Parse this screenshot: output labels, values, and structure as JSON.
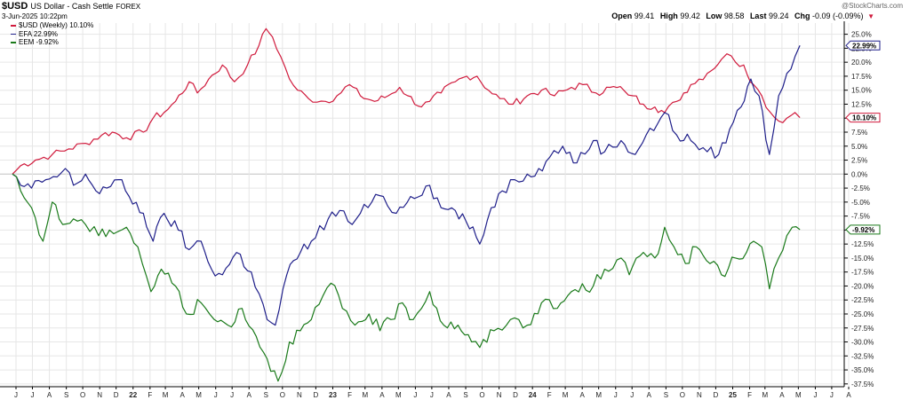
{
  "header": {
    "symbol": "$USD",
    "description": "US Dollar - Cash Settle",
    "exchange": "FOREX",
    "datetime": "3-Jun-2025 10:22pm",
    "watermark": "@StockCharts.com",
    "open_label": "Open",
    "open": "99.41",
    "high_label": "High",
    "high": "99.42",
    "low_label": "Low",
    "low": "98.58",
    "last_label": "Last",
    "last": "99.24",
    "chg_label": "Chg",
    "chg": "-0.09 (-0.09%)"
  },
  "colors": {
    "usd": "#d01a3c",
    "efa": "#1f1f8a",
    "eem": "#1a7a1a",
    "grid": "#e6e6e6",
    "axis": "#000000"
  },
  "chart_data": {
    "type": "line",
    "ylim": [
      -38,
      27
    ],
    "yticks": [
      25,
      22.5,
      20,
      17.5,
      15,
      12.5,
      10,
      7.5,
      5,
      2.5,
      0,
      -2.5,
      -5,
      -7.5,
      -10,
      -12.5,
      -15,
      -17.5,
      -20,
      -22.5,
      -25,
      -27.5,
      -30,
      -32.5,
      -35,
      -37.5
    ],
    "ytick_labels": [
      "25.0%",
      "22.5%",
      "20.0%",
      "17.5%",
      "15.0%",
      "12.5%",
      "10.0%",
      "7.5%",
      "5.0%",
      "2.5%",
      "0.0%",
      "-2.5%",
      "-5.0%",
      "-7.5%",
      "-10.0%",
      "-12.5%",
      "-15.0%",
      "-17.5%",
      "-20.0%",
      "-22.5%",
      "-25.0%",
      "-27.5%",
      "-30.0%",
      "-32.5%",
      "-35.0%",
      "-37.5%"
    ],
    "xlim": [
      "2021-06-20",
      "2025-08-20"
    ],
    "xticks": [
      {
        "date": "2021-06-01",
        "label": "J"
      },
      {
        "date": "2021-07-01",
        "label": "J"
      },
      {
        "date": "2021-08-01",
        "label": "A"
      },
      {
        "date": "2021-09-01",
        "label": "S"
      },
      {
        "date": "2021-10-01",
        "label": "O"
      },
      {
        "date": "2021-11-01",
        "label": "N"
      },
      {
        "date": "2021-12-01",
        "label": "D"
      },
      {
        "date": "2022-01-01",
        "label": "22",
        "year": true
      },
      {
        "date": "2022-02-01",
        "label": "F"
      },
      {
        "date": "2022-03-01",
        "label": "M"
      },
      {
        "date": "2022-04-01",
        "label": "A"
      },
      {
        "date": "2022-05-01",
        "label": "M"
      },
      {
        "date": "2022-06-01",
        "label": "J"
      },
      {
        "date": "2022-07-01",
        "label": "J"
      },
      {
        "date": "2022-08-01",
        "label": "A"
      },
      {
        "date": "2022-09-01",
        "label": "S"
      },
      {
        "date": "2022-10-01",
        "label": "O"
      },
      {
        "date": "2022-11-01",
        "label": "N"
      },
      {
        "date": "2022-12-01",
        "label": "D"
      },
      {
        "date": "2023-01-01",
        "label": "23",
        "year": true
      },
      {
        "date": "2023-02-01",
        "label": "F"
      },
      {
        "date": "2023-03-01",
        "label": "M"
      },
      {
        "date": "2023-04-01",
        "label": "A"
      },
      {
        "date": "2023-05-01",
        "label": "M"
      },
      {
        "date": "2023-06-01",
        "label": "J"
      },
      {
        "date": "2023-07-01",
        "label": "J"
      },
      {
        "date": "2023-08-01",
        "label": "A"
      },
      {
        "date": "2023-09-01",
        "label": "S"
      },
      {
        "date": "2023-10-01",
        "label": "O"
      },
      {
        "date": "2023-11-01",
        "label": "N"
      },
      {
        "date": "2023-12-01",
        "label": "D"
      },
      {
        "date": "2024-01-01",
        "label": "24",
        "year": true
      },
      {
        "date": "2024-02-01",
        "label": "F"
      },
      {
        "date": "2024-03-01",
        "label": "M"
      },
      {
        "date": "2024-04-01",
        "label": "A"
      },
      {
        "date": "2024-05-01",
        "label": "M"
      },
      {
        "date": "2024-06-01",
        "label": "J"
      },
      {
        "date": "2024-07-01",
        "label": "J"
      },
      {
        "date": "2024-08-01",
        "label": "A"
      },
      {
        "date": "2024-09-01",
        "label": "S"
      },
      {
        "date": "2024-10-01",
        "label": "O"
      },
      {
        "date": "2024-11-01",
        "label": "N"
      },
      {
        "date": "2024-12-01",
        "label": "D"
      },
      {
        "date": "2025-01-01",
        "label": "25",
        "year": true
      },
      {
        "date": "2025-02-01",
        "label": "F"
      },
      {
        "date": "2025-03-01",
        "label": "M"
      },
      {
        "date": "2025-04-01",
        "label": "A"
      },
      {
        "date": "2025-05-01",
        "label": "M"
      },
      {
        "date": "2025-06-01",
        "label": "J"
      },
      {
        "date": "2025-07-01",
        "label": "J"
      },
      {
        "date": "2025-08-01",
        "label": "A"
      }
    ],
    "series": [
      {
        "name": "$USD (Weekly) 10.10%",
        "key": "usd",
        "end_label": "10.10%",
        "points": [
          [
            "2021-06-20",
            0
          ],
          [
            "2021-07-05",
            1.5
          ],
          [
            "2021-08-01",
            2.5
          ],
          [
            "2021-09-01",
            3.5
          ],
          [
            "2021-10-01",
            4.5
          ],
          [
            "2021-11-01",
            5.5
          ],
          [
            "2021-12-01",
            7
          ],
          [
            "2021-12-20",
            7.5
          ],
          [
            "2022-01-15",
            6.5
          ],
          [
            "2022-02-15",
            7.5
          ],
          [
            "2022-03-05",
            10
          ],
          [
            "2022-03-25",
            11
          ],
          [
            "2022-04-15",
            13
          ],
          [
            "2022-05-10",
            16.5
          ],
          [
            "2022-05-25",
            14.5
          ],
          [
            "2022-06-15",
            17
          ],
          [
            "2022-07-10",
            19.5
          ],
          [
            "2022-08-01",
            16.5
          ],
          [
            "2022-08-25",
            19.5
          ],
          [
            "2022-09-15",
            23
          ],
          [
            "2022-09-28",
            26
          ],
          [
            "2022-10-10",
            24.5
          ],
          [
            "2022-10-25",
            21
          ],
          [
            "2022-11-10",
            17
          ],
          [
            "2022-11-25",
            15
          ],
          [
            "2022-12-15",
            13.5
          ],
          [
            "2023-01-15",
            13
          ],
          [
            "2023-02-05",
            14
          ],
          [
            "2023-02-28",
            16
          ],
          [
            "2023-03-20",
            14
          ],
          [
            "2023-04-15",
            13
          ],
          [
            "2023-05-10",
            14
          ],
          [
            "2023-05-31",
            15.5
          ],
          [
            "2023-06-15",
            14
          ],
          [
            "2023-07-10",
            12
          ],
          [
            "2023-07-25",
            13
          ],
          [
            "2023-08-15",
            14.5
          ],
          [
            "2023-09-10",
            16.5
          ],
          [
            "2023-10-01",
            17.5
          ],
          [
            "2023-10-20",
            17.5
          ],
          [
            "2023-11-10",
            15
          ],
          [
            "2023-12-01",
            13.5
          ],
          [
            "2023-12-25",
            12.5
          ],
          [
            "2024-01-20",
            14
          ],
          [
            "2024-02-15",
            15
          ],
          [
            "2024-03-10",
            14
          ],
          [
            "2024-04-10",
            15.5
          ],
          [
            "2024-05-01",
            16
          ],
          [
            "2024-05-25",
            14.5
          ],
          [
            "2024-06-20",
            15.5
          ],
          [
            "2024-07-15",
            15
          ],
          [
            "2024-08-01",
            14
          ],
          [
            "2024-08-20",
            12.5
          ],
          [
            "2024-09-10",
            12
          ],
          [
            "2024-09-28",
            11
          ],
          [
            "2024-10-20",
            13
          ],
          [
            "2024-11-15",
            16
          ],
          [
            "2024-12-15",
            18
          ],
          [
            "2025-01-10",
            20.5
          ],
          [
            "2025-01-20",
            21.5
          ],
          [
            "2025-02-05",
            20
          ],
          [
            "2025-02-20",
            19.5
          ],
          [
            "2025-03-10",
            16
          ],
          [
            "2025-03-25",
            14
          ],
          [
            "2025-04-10",
            11
          ],
          [
            "2025-04-25",
            9.5
          ],
          [
            "2025-05-10",
            10
          ],
          [
            "2025-05-25",
            11
          ],
          [
            "2025-06-03",
            10.1
          ]
        ]
      },
      {
        "name": "EFA 22.99%",
        "key": "efa",
        "end_label": "22.99%",
        "points": [
          [
            "2021-06-20",
            0
          ],
          [
            "2021-07-05",
            -2
          ],
          [
            "2021-07-25",
            -2.5
          ],
          [
            "2021-08-20",
            -1
          ],
          [
            "2021-09-10",
            -0.5
          ],
          [
            "2021-09-25",
            1
          ],
          [
            "2021-10-10",
            -2
          ],
          [
            "2021-11-01",
            0
          ],
          [
            "2021-11-20",
            -3
          ],
          [
            "2021-12-10",
            -2.5
          ],
          [
            "2021-12-31",
            -1
          ],
          [
            "2022-01-20",
            -4
          ],
          [
            "2022-02-15",
            -7
          ],
          [
            "2022-03-05",
            -12
          ],
          [
            "2022-03-25",
            -7
          ],
          [
            "2022-04-20",
            -10
          ],
          [
            "2022-05-10",
            -13.5
          ],
          [
            "2022-06-01",
            -12
          ],
          [
            "2022-06-20",
            -17
          ],
          [
            "2022-07-10",
            -18
          ],
          [
            "2022-08-05",
            -14
          ],
          [
            "2022-09-01",
            -17.5
          ],
          [
            "2022-09-30",
            -26
          ],
          [
            "2022-10-15",
            -27
          ],
          [
            "2022-11-05",
            -18
          ],
          [
            "2022-11-30",
            -14
          ],
          [
            "2022-12-20",
            -12
          ],
          [
            "2023-01-20",
            -8
          ],
          [
            "2023-02-10",
            -6.5
          ],
          [
            "2023-03-05",
            -9
          ],
          [
            "2023-03-20",
            -7
          ],
          [
            "2023-04-10",
            -5
          ],
          [
            "2023-05-01",
            -4
          ],
          [
            "2023-05-25",
            -7
          ],
          [
            "2023-06-20",
            -4
          ],
          [
            "2023-07-25",
            -2
          ],
          [
            "2023-08-15",
            -6
          ],
          [
            "2023-09-10",
            -6.5
          ],
          [
            "2023-09-30",
            -8.5
          ],
          [
            "2023-10-25",
            -12.5
          ],
          [
            "2023-11-15",
            -6
          ],
          [
            "2023-12-05",
            -3
          ],
          [
            "2023-12-28",
            -1
          ],
          [
            "2024-01-20",
            0
          ],
          [
            "2024-02-10",
            1
          ],
          [
            "2024-03-01",
            3
          ],
          [
            "2024-03-25",
            5
          ],
          [
            "2024-04-20",
            2
          ],
          [
            "2024-05-20",
            6
          ],
          [
            "2024-06-10",
            4
          ],
          [
            "2024-07-10",
            6
          ],
          [
            "2024-08-05",
            3.5
          ],
          [
            "2024-08-25",
            7
          ],
          [
            "2024-09-15",
            9
          ],
          [
            "2024-09-28",
            11
          ],
          [
            "2024-10-20",
            7
          ],
          [
            "2024-11-15",
            6
          ],
          [
            "2024-12-15",
            4
          ],
          [
            "2025-01-05",
            3.5
          ],
          [
            "2025-01-25",
            8
          ],
          [
            "2025-02-15",
            12
          ],
          [
            "2025-03-05",
            17
          ],
          [
            "2025-03-20",
            14
          ],
          [
            "2025-04-08",
            3.5
          ],
          [
            "2025-04-25",
            14
          ],
          [
            "2025-05-10",
            18
          ],
          [
            "2025-05-25",
            21
          ],
          [
            "2025-06-03",
            22.99
          ]
        ]
      },
      {
        "name": "EEM -9.92%",
        "key": "eem",
        "end_label": "-9.92%",
        "points": [
          [
            "2021-06-20",
            0
          ],
          [
            "2021-07-05",
            -3
          ],
          [
            "2021-07-25",
            -6
          ],
          [
            "2021-08-15",
            -12
          ],
          [
            "2021-09-01",
            -5
          ],
          [
            "2021-09-20",
            -9
          ],
          [
            "2021-10-10",
            -8
          ],
          [
            "2021-11-01",
            -9
          ],
          [
            "2021-11-25",
            -11
          ],
          [
            "2021-12-15",
            -10
          ],
          [
            "2022-01-15",
            -9.5
          ],
          [
            "2022-02-05",
            -13
          ],
          [
            "2022-03-01",
            -21
          ],
          [
            "2022-03-20",
            -17
          ],
          [
            "2022-04-15",
            -20
          ],
          [
            "2022-05-05",
            -25
          ],
          [
            "2022-06-01",
            -23
          ],
          [
            "2022-06-25",
            -26
          ],
          [
            "2022-07-20",
            -27
          ],
          [
            "2022-08-15",
            -24
          ],
          [
            "2022-09-10",
            -29
          ],
          [
            "2022-09-30",
            -33
          ],
          [
            "2022-10-20",
            -37
          ],
          [
            "2022-11-10",
            -30
          ],
          [
            "2022-11-30",
            -28
          ],
          [
            "2022-12-20",
            -26
          ],
          [
            "2023-01-25",
            -19.5
          ],
          [
            "2023-02-15",
            -24
          ],
          [
            "2023-03-10",
            -27
          ],
          [
            "2023-04-05",
            -25
          ],
          [
            "2023-04-25",
            -28
          ],
          [
            "2023-05-15",
            -26
          ],
          [
            "2023-06-05",
            -23
          ],
          [
            "2023-06-25",
            -26
          ],
          [
            "2023-07-25",
            -21
          ],
          [
            "2023-08-20",
            -27
          ],
          [
            "2023-09-15",
            -27
          ],
          [
            "2023-10-10",
            -30
          ],
          [
            "2023-10-25",
            -31
          ],
          [
            "2023-11-20",
            -28
          ],
          [
            "2023-12-20",
            -26
          ],
          [
            "2024-01-20",
            -27
          ],
          [
            "2024-02-15",
            -23
          ],
          [
            "2024-03-15",
            -24
          ],
          [
            "2024-04-10",
            -21
          ],
          [
            "2024-05-20",
            -20
          ],
          [
            "2024-06-10",
            -17
          ],
          [
            "2024-07-10",
            -15
          ],
          [
            "2024-07-25",
            -18
          ],
          [
            "2024-08-20",
            -14
          ],
          [
            "2024-09-10",
            -15
          ],
          [
            "2024-09-28",
            -9.5
          ],
          [
            "2024-10-15",
            -13
          ],
          [
            "2024-11-05",
            -16
          ],
          [
            "2024-11-25",
            -13
          ],
          [
            "2024-12-20",
            -16
          ],
          [
            "2025-01-10",
            -18
          ],
          [
            "2025-02-05",
            -15
          ],
          [
            "2025-02-25",
            -14
          ],
          [
            "2025-03-10",
            -12
          ],
          [
            "2025-03-25",
            -13
          ],
          [
            "2025-04-08",
            -20.5
          ],
          [
            "2025-04-25",
            -15
          ],
          [
            "2025-05-10",
            -11
          ],
          [
            "2025-05-20",
            -9.5
          ],
          [
            "2025-06-03",
            -9.92
          ]
        ]
      }
    ]
  }
}
